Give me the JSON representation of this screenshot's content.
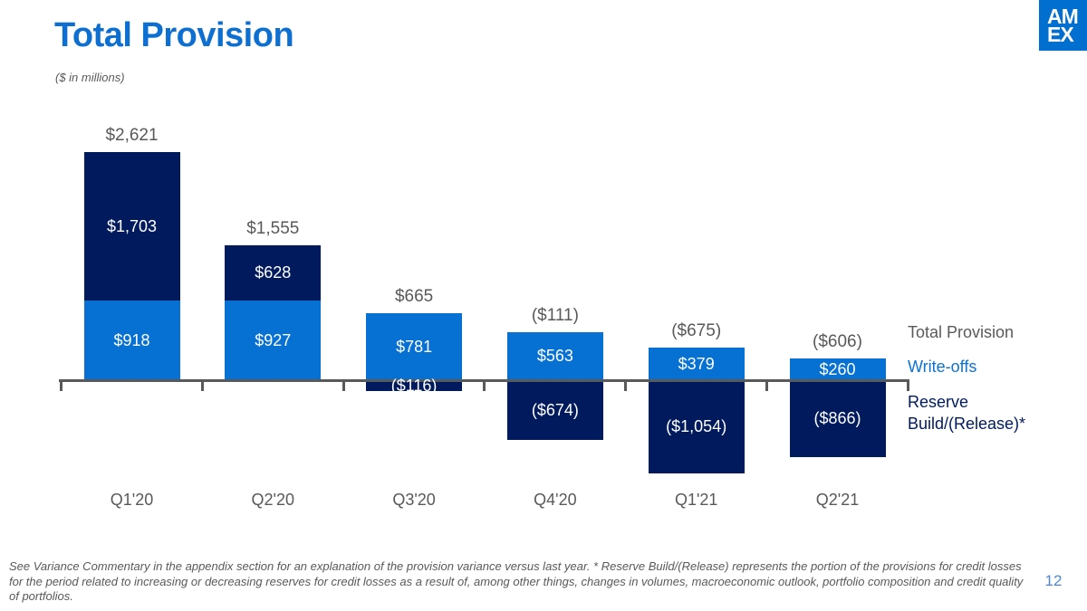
{
  "header": {
    "title": "Total Provision",
    "units_note": "($ in millions)",
    "logo": {
      "line1": "AM",
      "line2": "EX"
    }
  },
  "chart_data": {
    "type": "bar",
    "stacked": true,
    "unit": "$ in millions",
    "categories": [
      "Q1'20",
      "Q2'20",
      "Q3'20",
      "Q4'20",
      "Q1'21",
      "Q2'21"
    ],
    "series": [
      {
        "name": "Write-offs",
        "color": "#0770D3",
        "values": [
          918,
          927,
          781,
          563,
          379,
          260
        ],
        "labels": [
          "$918",
          "$927",
          "$781",
          "$563",
          "$379",
          "$260"
        ]
      },
      {
        "name": "Reserve Build/(Release)*",
        "color": "#001A5E",
        "values": [
          1703,
          628,
          -116,
          -674,
          -1054,
          -866
        ],
        "labels": [
          "$1,703",
          "$628",
          "($116)",
          "($674)",
          "($1,054)",
          "($866)"
        ]
      }
    ],
    "totals": {
      "name": "Total Provision",
      "values": [
        2621,
        1555,
        665,
        -111,
        -675,
        -606
      ],
      "labels": [
        "$2,621",
        "$1,555",
        "$665",
        "($111)",
        "($675)",
        "($606)"
      ]
    },
    "baseline": 0,
    "grid": false,
    "legend_position": "right"
  },
  "legend": {
    "items": [
      {
        "label": "Total Provision",
        "color": "#595959"
      },
      {
        "label": "Write-offs",
        "color": "#0C72D4"
      },
      {
        "label": "Reserve Build/(Release)*",
        "color": "#001A5E"
      }
    ]
  },
  "footer": {
    "note": "See Variance Commentary in the appendix section for an explanation of the provision variance versus last year. * Reserve Build/(Release) represents the portion of the provisions for credit losses for the period related to increasing or decreasing reserves for credit losses as a result of, among other things, changes in volumes, macroeconomic outlook, portfolio composition and credit quality of portfolios.",
    "page_number": "12"
  },
  "colors": {
    "title_blue": "#0D6FD1",
    "logo_blue": "#016FD0",
    "bar_blue": "#0770D3",
    "bar_navy": "#001A5E",
    "text_gray": "#595959",
    "axis_gray": "#595959",
    "page_number_blue": "#4C86D2"
  }
}
